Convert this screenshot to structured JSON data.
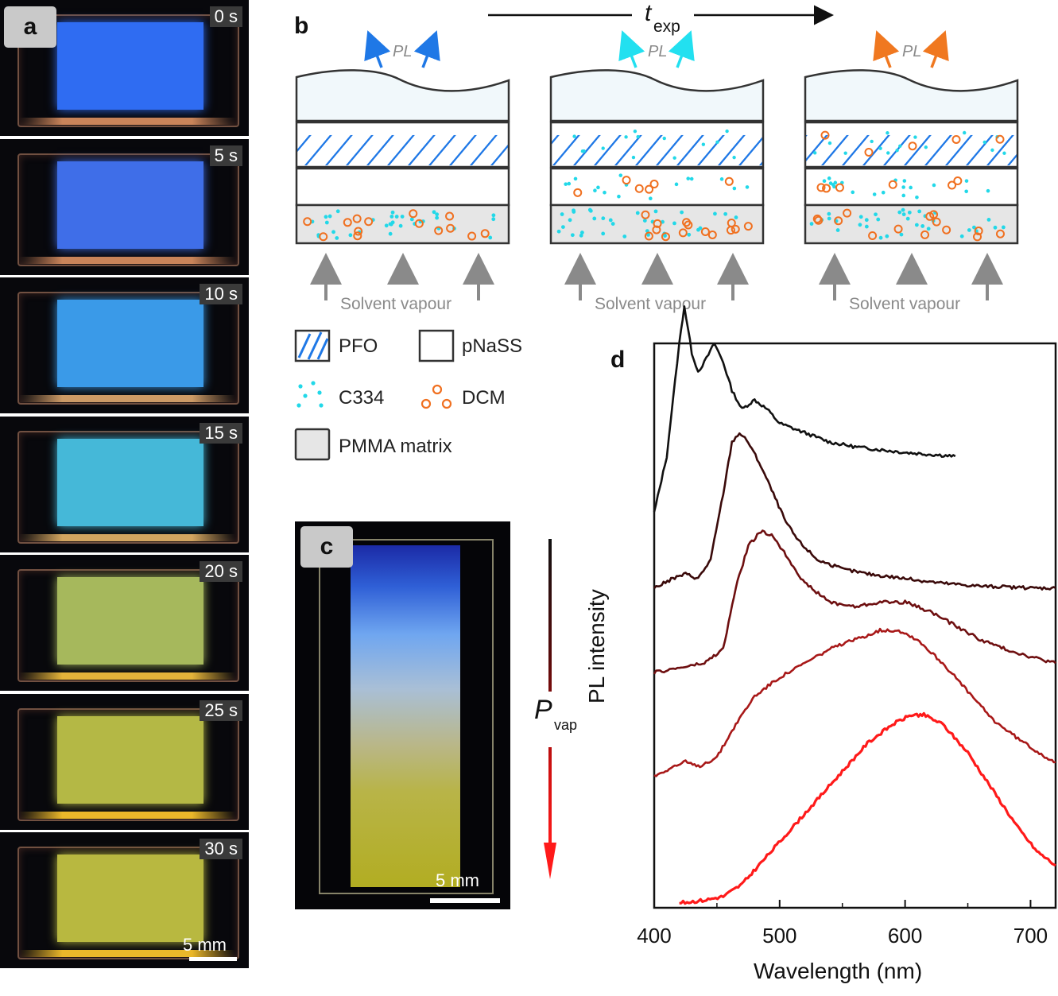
{
  "panels": {
    "a": {
      "label": "a",
      "frames": [
        {
          "time": "0 s",
          "film": "#2f6cf2",
          "edge": "#c9845a"
        },
        {
          "time": "5 s",
          "film": "#3f6ee8",
          "edge": "#c9845a"
        },
        {
          "time": "10 s",
          "film": "#3a9ae8",
          "edge": "#cc9a66"
        },
        {
          "time": "15 s",
          "film": "#45b8d8",
          "edge": "#d2a560"
        },
        {
          "time": "20 s",
          "film": "#a6b85c",
          "edge": "#e3b33a"
        },
        {
          "time": "25 s",
          "film": "#b4b845",
          "edge": "#eab72a"
        },
        {
          "time": "30 s",
          "film": "#b8b840",
          "edge": "#eab72a"
        }
      ],
      "scale_bar": "5 mm"
    },
    "b": {
      "label": "b",
      "time_axis_label": "t",
      "time_axis_subscript": "exp",
      "pl_label": "PL",
      "pl_colors": [
        "#1f78e6",
        "#22e0f0",
        "#f07820"
      ],
      "solvent_label": "Solvent vapour",
      "legend": {
        "pfo": "PFO",
        "pnass": "pNaSS",
        "c334": "C334",
        "dcm": "DCM",
        "pmma": "PMMA matrix"
      }
    },
    "c": {
      "label": "c",
      "scale_bar": "5 mm",
      "pressure_label": "P",
      "pressure_subscript": "vap"
    },
    "d": {
      "label": "d",
      "xlabel": "Wavelength (nm)",
      "ylabel": "PL intensity",
      "x_ticks": [
        "400",
        "500",
        "600",
        "700"
      ]
    }
  },
  "chart_data": {
    "type": "line",
    "xlabel": "Wavelength (nm)",
    "ylabel": "PL intensity",
    "xlim": [
      400,
      720
    ],
    "ylim": [
      0,
      6
    ],
    "x_ticks": [
      400,
      500,
      600,
      700
    ],
    "y_ticks_shown": false,
    "series": [
      {
        "color": "#111111",
        "offset": 4.0,
        "points": [
          [
            400,
            4.2
          ],
          [
            410,
            4.8
          ],
          [
            415,
            5.4
          ],
          [
            420,
            6.0
          ],
          [
            424,
            6.4
          ],
          [
            430,
            5.9
          ],
          [
            435,
            5.7
          ],
          [
            440,
            5.8
          ],
          [
            448,
            6.0
          ],
          [
            455,
            5.8
          ],
          [
            462,
            5.5
          ],
          [
            470,
            5.3
          ],
          [
            480,
            5.4
          ],
          [
            490,
            5.3
          ],
          [
            500,
            5.15
          ],
          [
            520,
            5.05
          ],
          [
            540,
            4.95
          ],
          [
            560,
            4.9
          ],
          [
            580,
            4.87
          ],
          [
            600,
            4.84
          ],
          [
            620,
            4.82
          ],
          [
            640,
            4.8
          ]
        ]
      },
      {
        "color": "#3a0a0a",
        "offset": 3.0,
        "points": [
          [
            400,
            3.4
          ],
          [
            415,
            3.5
          ],
          [
            425,
            3.55
          ],
          [
            435,
            3.5
          ],
          [
            445,
            3.7
          ],
          [
            455,
            4.4
          ],
          [
            462,
            4.95
          ],
          [
            468,
            5.05
          ],
          [
            475,
            4.95
          ],
          [
            485,
            4.7
          ],
          [
            495,
            4.4
          ],
          [
            505,
            4.1
          ],
          [
            515,
            3.9
          ],
          [
            530,
            3.7
          ],
          [
            550,
            3.6
          ],
          [
            570,
            3.55
          ],
          [
            600,
            3.5
          ],
          [
            630,
            3.45
          ],
          [
            660,
            3.42
          ],
          [
            700,
            3.4
          ],
          [
            720,
            3.4
          ]
        ]
      },
      {
        "color": "#6e0f10",
        "offset": 2.0,
        "points": [
          [
            400,
            2.5
          ],
          [
            420,
            2.55
          ],
          [
            440,
            2.6
          ],
          [
            455,
            2.75
          ],
          [
            465,
            3.4
          ],
          [
            475,
            3.85
          ],
          [
            485,
            4.0
          ],
          [
            495,
            3.95
          ],
          [
            505,
            3.75
          ],
          [
            520,
            3.45
          ],
          [
            540,
            3.25
          ],
          [
            560,
            3.2
          ],
          [
            580,
            3.25
          ],
          [
            600,
            3.25
          ],
          [
            620,
            3.15
          ],
          [
            640,
            3.0
          ],
          [
            660,
            2.85
          ],
          [
            680,
            2.75
          ],
          [
            700,
            2.67
          ],
          [
            720,
            2.6
          ]
        ]
      },
      {
        "color": "#a81818",
        "offset": 1.0,
        "points": [
          [
            400,
            1.4
          ],
          [
            415,
            1.5
          ],
          [
            425,
            1.55
          ],
          [
            435,
            1.5
          ],
          [
            450,
            1.6
          ],
          [
            465,
            1.95
          ],
          [
            480,
            2.25
          ],
          [
            500,
            2.45
          ],
          [
            520,
            2.6
          ],
          [
            540,
            2.75
          ],
          [
            560,
            2.85
          ],
          [
            580,
            2.95
          ],
          [
            595,
            2.95
          ],
          [
            610,
            2.85
          ],
          [
            630,
            2.6
          ],
          [
            650,
            2.3
          ],
          [
            670,
            2.0
          ],
          [
            690,
            1.8
          ],
          [
            710,
            1.62
          ],
          [
            720,
            1.55
          ]
        ]
      },
      {
        "color": "#ff1a1a",
        "offset": 0.0,
        "points": [
          [
            420,
            0.05
          ],
          [
            440,
            0.08
          ],
          [
            455,
            0.12
          ],
          [
            470,
            0.25
          ],
          [
            490,
            0.55
          ],
          [
            510,
            0.85
          ],
          [
            530,
            1.15
          ],
          [
            550,
            1.45
          ],
          [
            570,
            1.75
          ],
          [
            590,
            1.95
          ],
          [
            605,
            2.05
          ],
          [
            615,
            2.05
          ],
          [
            630,
            1.95
          ],
          [
            650,
            1.65
          ],
          [
            670,
            1.25
          ],
          [
            690,
            0.85
          ],
          [
            705,
            0.6
          ],
          [
            720,
            0.45
          ]
        ]
      }
    ]
  }
}
